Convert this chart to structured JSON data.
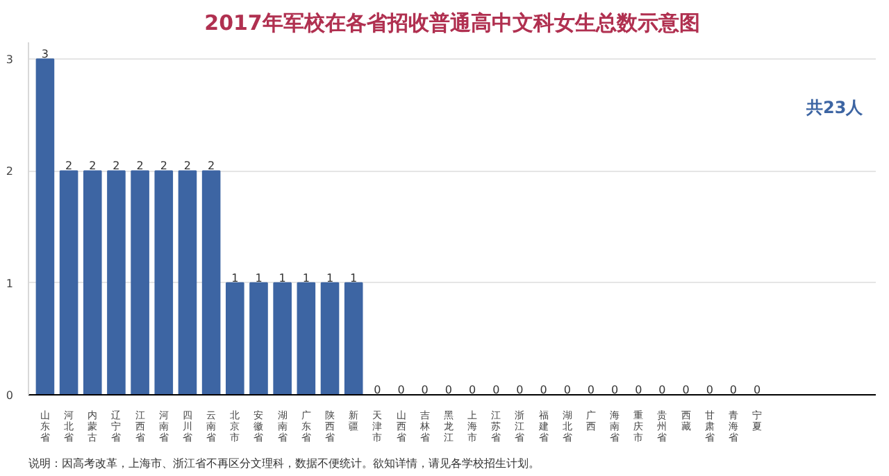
{
  "chart_data": {
    "type": "bar",
    "title": "2017年军校在各省招收普通高中文科女生总数示意图",
    "categories": [
      "山东省",
      "河北省",
      "内蒙古",
      "辽宁省",
      "江西省",
      "河南省",
      "四川省",
      "云南省",
      "北京市",
      "安徽省",
      "湖南省",
      "广东省",
      "陕西省",
      "新疆",
      "天津市",
      "山西省",
      "吉林省",
      "黑龙江",
      "上海市",
      "江苏省",
      "浙江省",
      "福建省",
      "湖北省",
      "广西",
      "海南省",
      "重庆市",
      "贵州省",
      "西藏",
      "甘肃省",
      "青海省",
      "宁夏"
    ],
    "values": [
      3,
      2,
      2,
      2,
      2,
      2,
      2,
      2,
      1,
      1,
      1,
      1,
      1,
      1,
      0,
      0,
      0,
      0,
      0,
      0,
      0,
      0,
      0,
      0,
      0,
      0,
      0,
      0,
      0,
      0,
      0
    ],
    "color": "#3d65a3",
    "ylim": [
      0,
      3.15
    ],
    "yticks": [
      0,
      1,
      2,
      3
    ],
    "grid": "y",
    "data_labels": true,
    "annotations": [
      "共23人",
      "说明：因高考改革，上海市、浙江省不再区分文理科，数据不便统计。欲知详情，请见各学校招生计划。"
    ]
  }
}
